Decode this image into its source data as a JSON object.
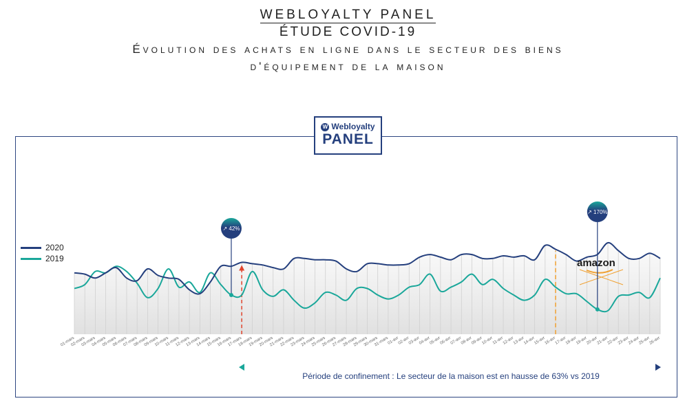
{
  "header": {
    "title": "WEBLOYALTY PANEL",
    "subtitle": "ÉTUDE COVID-19",
    "line1": "Évolution des achats en ligne dans le secteur des biens",
    "line2": "d'équipement de la maison"
  },
  "logo": {
    "brand": "Webloyalty",
    "panel": "PANEL"
  },
  "legend": {
    "s2020": "2020",
    "s2019": "2019"
  },
  "colors": {
    "c2020": "#243f7d",
    "c2019": "#1aa79a",
    "red": "#e0442c",
    "orange": "#f0a030"
  },
  "chart_data": {
    "type": "line",
    "title": "Évolution des achats en ligne dans le secteur des biens d'équipement de la maison",
    "categories": [
      "01-mars",
      "02-mars",
      "03-mars",
      "04-mars",
      "05-mars",
      "06-mars",
      "07-mars",
      "08-mars",
      "09-mars",
      "10-mars",
      "11-mars",
      "12-mars",
      "13-mars",
      "14-mars",
      "15-mars",
      "16-mars",
      "17-mars",
      "18-mars",
      "19-mars",
      "20-mars",
      "21-mars",
      "22-mars",
      "23-mars",
      "24-mars",
      "25-mars",
      "26-mars",
      "27-mars",
      "28-mars",
      "29-mars",
      "30-mars",
      "31-mars",
      "01-avr",
      "02-avr",
      "03-avr",
      "04-avr",
      "05-avr",
      "06-avr",
      "07-avr",
      "08-avr",
      "09-avr",
      "10-avr",
      "11-avr",
      "12-avr",
      "13-avr",
      "14-avr",
      "15-avr",
      "16-avr",
      "17-avr",
      "18-avr",
      "19-avr",
      "20-avr",
      "21-avr",
      "22-avr",
      "23-avr",
      "24-avr",
      "25-avr",
      "26-avr"
    ],
    "series": [
      {
        "name": "2020",
        "values": [
          47,
          46,
          43,
          47,
          51,
          43,
          41,
          50,
          45,
          43,
          42,
          34,
          31,
          40,
          52,
          52,
          55,
          54,
          53,
          51,
          50,
          58,
          58,
          57,
          57,
          56,
          50,
          48,
          54,
          54,
          53,
          53,
          54,
          59,
          61,
          59,
          57,
          61,
          61,
          58,
          58,
          60,
          59,
          60,
          57,
          68,
          65,
          61,
          56,
          59,
          61,
          70,
          64,
          58,
          58,
          62,
          58
        ]
      },
      {
        "name": "2019",
        "values": [
          35,
          38,
          48,
          47,
          52,
          48,
          39,
          28,
          35,
          50,
          36,
          40,
          32,
          47,
          38,
          30,
          30,
          48,
          34,
          29,
          34,
          26,
          20,
          24,
          32,
          30,
          26,
          35,
          35,
          30,
          27,
          30,
          36,
          38,
          46,
          33,
          36,
          40,
          46,
          38,
          42,
          35,
          30,
          26,
          30,
          42,
          36,
          31,
          31,
          25,
          19,
          18,
          29,
          30,
          32,
          28,
          43
        ]
      }
    ],
    "ylim": [
      0,
      100
    ],
    "annotations": [
      {
        "label": "↗ 42%",
        "category": "16-mars",
        "series": "2019"
      },
      {
        "label": "↗ 170%",
        "category": "20-avr",
        "series": "2019"
      }
    ],
    "markers": [
      {
        "category": "17-mars",
        "type": "dashed-arrow",
        "color": "#e0442c"
      },
      {
        "category": "16-avr",
        "type": "dashed-line",
        "color": "#f0a030"
      }
    ]
  },
  "confinement": {
    "text": "Période de confinement : Le secteur de la maison est en hausse de 63% vs 2019"
  },
  "amazon": "amazon"
}
